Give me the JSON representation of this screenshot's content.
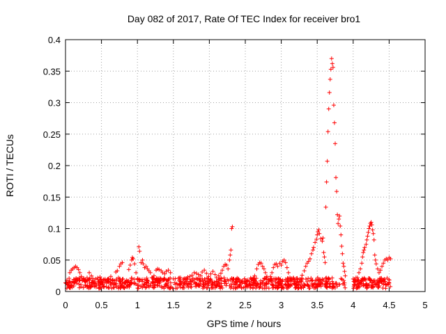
{
  "chart_data": {
    "type": "scatter",
    "title": "Day 082 of 2017, Rate Of TEC Index for receiver bro1",
    "xlabel": "GPS time / hours",
    "ylabel": "ROTI / TECUs",
    "xlim": [
      0,
      5
    ],
    "ylim": [
      0,
      0.4
    ],
    "xticks": [
      0,
      0.5,
      1,
      1.5,
      2,
      2.5,
      3,
      3.5,
      4,
      4.5,
      5
    ],
    "xtick_labels": [
      "0",
      "0.5",
      "1",
      "1.5",
      "2",
      "2.5",
      "3",
      "3.5",
      "4",
      "4.5",
      "5"
    ],
    "yticks": [
      0,
      0.05,
      0.1,
      0.15,
      0.2,
      0.25,
      0.3,
      0.35,
      0.4
    ],
    "ytick_labels": [
      "0",
      "0.05",
      "0.1",
      "0.15",
      "0.2",
      "0.25",
      "0.3",
      "0.35",
      "0.4"
    ],
    "grid": true,
    "marker": "+",
    "marker_color": "#ff0000",
    "series": [
      {
        "name": "ROTI",
        "points": [
          [
            0.0,
            0.014
          ],
          [
            0.02,
            0.018
          ],
          [
            0.03,
            0.011
          ],
          [
            0.05,
            0.021
          ],
          [
            0.06,
            0.03
          ],
          [
            0.08,
            0.034
          ],
          [
            0.1,
            0.036
          ],
          [
            0.12,
            0.038
          ],
          [
            0.14,
            0.04
          ],
          [
            0.16,
            0.038
          ],
          [
            0.18,
            0.035
          ],
          [
            0.2,
            0.03
          ],
          [
            0.22,
            0.024
          ],
          [
            0.25,
            0.019
          ],
          [
            0.28,
            0.015
          ],
          [
            0.3,
            0.022
          ],
          [
            0.33,
            0.03
          ],
          [
            0.36,
            0.025
          ],
          [
            0.38,
            0.018
          ],
          [
            0.4,
            0.014
          ],
          [
            0.42,
            0.012
          ],
          [
            0.45,
            0.019
          ],
          [
            0.48,
            0.023
          ],
          [
            0.5,
            0.016
          ],
          [
            0.52,
            0.012
          ],
          [
            0.55,
            0.02
          ],
          [
            0.58,
            0.018
          ],
          [
            0.6,
            0.015
          ],
          [
            0.63,
            0.024
          ],
          [
            0.66,
            0.013
          ],
          [
            0.68,
            0.017
          ],
          [
            0.7,
            0.031
          ],
          [
            0.72,
            0.033
          ],
          [
            0.75,
            0.04
          ],
          [
            0.77,
            0.044
          ],
          [
            0.79,
            0.046
          ],
          [
            0.8,
            0.02
          ],
          [
            0.82,
            0.014
          ],
          [
            0.85,
            0.018
          ],
          [
            0.88,
            0.035
          ],
          [
            0.9,
            0.042
          ],
          [
            0.92,
            0.05
          ],
          [
            0.93,
            0.054
          ],
          [
            0.94,
            0.052
          ],
          [
            0.96,
            0.044
          ],
          [
            0.98,
            0.03
          ],
          [
            1.0,
            0.02
          ],
          [
            1.02,
            0.071
          ],
          [
            1.03,
            0.064
          ],
          [
            1.05,
            0.046
          ],
          [
            1.07,
            0.05
          ],
          [
            1.08,
            0.044
          ],
          [
            1.1,
            0.038
          ],
          [
            1.12,
            0.04
          ],
          [
            1.14,
            0.036
          ],
          [
            1.16,
            0.033
          ],
          [
            1.18,
            0.03
          ],
          [
            1.2,
            0.022
          ],
          [
            1.23,
            0.025
          ],
          [
            1.26,
            0.034
          ],
          [
            1.28,
            0.036
          ],
          [
            1.3,
            0.035
          ],
          [
            1.33,
            0.033
          ],
          [
            1.35,
            0.03
          ],
          [
            1.38,
            0.028
          ],
          [
            1.4,
            0.032
          ],
          [
            1.43,
            0.034
          ],
          [
            1.46,
            0.03
          ],
          [
            1.5,
            0.02
          ],
          [
            1.52,
            0.014
          ],
          [
            1.55,
            0.012
          ],
          [
            1.58,
            0.018
          ],
          [
            1.6,
            0.022
          ],
          [
            1.63,
            0.015
          ],
          [
            1.66,
            0.013
          ],
          [
            1.7,
            0.023
          ],
          [
            1.73,
            0.024
          ],
          [
            1.76,
            0.026
          ],
          [
            1.79,
            0.03
          ],
          [
            1.82,
            0.029
          ],
          [
            1.85,
            0.027
          ],
          [
            1.88,
            0.025
          ],
          [
            1.9,
            0.031
          ],
          [
            1.93,
            0.034
          ],
          [
            1.96,
            0.029
          ],
          [
            1.99,
            0.024
          ],
          [
            2.02,
            0.028
          ],
          [
            2.05,
            0.032
          ],
          [
            2.08,
            0.027
          ],
          [
            2.1,
            0.022
          ],
          [
            2.13,
            0.025
          ],
          [
            2.16,
            0.029
          ],
          [
            2.18,
            0.034
          ],
          [
            2.2,
            0.04
          ],
          [
            2.22,
            0.043
          ],
          [
            2.24,
            0.042
          ],
          [
            2.26,
            0.036
          ],
          [
            2.28,
            0.05
          ],
          [
            2.29,
            0.058
          ],
          [
            2.3,
            0.066
          ],
          [
            2.31,
            0.1
          ],
          [
            2.32,
            0.103
          ],
          [
            2.34,
            0.02
          ],
          [
            2.38,
            0.018
          ],
          [
            2.42,
            0.015
          ],
          [
            2.46,
            0.017
          ],
          [
            2.5,
            0.013
          ],
          [
            2.55,
            0.016
          ],
          [
            2.6,
            0.02
          ],
          [
            2.63,
            0.025
          ],
          [
            2.66,
            0.036
          ],
          [
            2.68,
            0.043
          ],
          [
            2.7,
            0.046
          ],
          [
            2.72,
            0.045
          ],
          [
            2.74,
            0.04
          ],
          [
            2.76,
            0.036
          ],
          [
            2.78,
            0.03
          ],
          [
            2.8,
            0.024
          ],
          [
            2.83,
            0.018
          ],
          [
            2.85,
            0.024
          ],
          [
            2.87,
            0.03
          ],
          [
            2.89,
            0.038
          ],
          [
            2.91,
            0.043
          ],
          [
            2.93,
            0.044
          ],
          [
            2.95,
            0.04
          ],
          [
            2.98,
            0.045
          ],
          [
            3.0,
            0.042
          ],
          [
            3.02,
            0.048
          ],
          [
            3.04,
            0.05
          ],
          [
            3.06,
            0.046
          ],
          [
            3.08,
            0.038
          ],
          [
            3.1,
            0.03
          ],
          [
            3.12,
            0.022
          ],
          [
            3.15,
            0.018
          ],
          [
            3.18,
            0.013
          ],
          [
            3.2,
            0.012
          ],
          [
            3.23,
            0.016
          ],
          [
            3.26,
            0.02
          ],
          [
            3.29,
            0.026
          ],
          [
            3.32,
            0.033
          ],
          [
            3.34,
            0.04
          ],
          [
            3.36,
            0.045
          ],
          [
            3.38,
            0.048
          ],
          [
            3.4,
            0.052
          ],
          [
            3.42,
            0.06
          ],
          [
            3.44,
            0.066
          ],
          [
            3.45,
            0.07
          ],
          [
            3.47,
            0.078
          ],
          [
            3.49,
            0.083
          ],
          [
            3.5,
            0.09
          ],
          [
            3.51,
            0.095
          ],
          [
            3.52,
            0.098
          ],
          [
            3.53,
            0.092
          ],
          [
            3.55,
            0.084
          ],
          [
            3.57,
            0.08
          ],
          [
            3.58,
            0.085
          ],
          [
            3.59,
            0.062
          ],
          [
            3.6,
            0.055
          ],
          [
            3.61,
            0.046
          ],
          [
            3.62,
            0.134
          ],
          [
            3.63,
            0.174
          ],
          [
            3.64,
            0.207
          ],
          [
            3.65,
            0.254
          ],
          [
            3.66,
            0.29
          ],
          [
            3.67,
            0.316
          ],
          [
            3.68,
            0.337
          ],
          [
            3.69,
            0.353
          ],
          [
            3.7,
            0.37
          ],
          [
            3.71,
            0.362
          ],
          [
            3.72,
            0.356
          ],
          [
            3.73,
            0.296
          ],
          [
            3.74,
            0.268
          ],
          [
            3.75,
            0.235
          ],
          [
            3.76,
            0.181
          ],
          [
            3.77,
            0.159
          ],
          [
            3.78,
            0.122
          ],
          [
            3.79,
            0.108
          ],
          [
            3.8,
            0.115
          ],
          [
            3.81,
            0.12
          ],
          [
            3.82,
            0.104
          ],
          [
            3.83,
            0.09
          ],
          [
            3.84,
            0.072
          ],
          [
            3.85,
            0.06
          ],
          [
            3.86,
            0.045
          ],
          [
            3.87,
            0.04
          ],
          [
            3.88,
            0.032
          ],
          [
            3.89,
            0.025
          ],
          [
            4.0,
            0.02
          ],
          [
            4.02,
            0.015
          ],
          [
            4.04,
            0.018
          ],
          [
            4.06,
            0.022
          ],
          [
            4.08,
            0.03
          ],
          [
            4.1,
            0.036
          ],
          [
            4.12,
            0.045
          ],
          [
            4.13,
            0.055
          ],
          [
            4.14,
            0.062
          ],
          [
            4.15,
            0.066
          ],
          [
            4.16,
            0.07
          ],
          [
            4.18,
            0.075
          ],
          [
            4.19,
            0.082
          ],
          [
            4.2,
            0.088
          ],
          [
            4.21,
            0.094
          ],
          [
            4.22,
            0.1
          ],
          [
            4.23,
            0.104
          ],
          [
            4.24,
            0.108
          ],
          [
            4.25,
            0.11
          ],
          [
            4.26,
            0.106
          ],
          [
            4.27,
            0.098
          ],
          [
            4.28,
            0.092
          ],
          [
            4.29,
            0.082
          ],
          [
            4.3,
            0.058
          ],
          [
            4.31,
            0.05
          ],
          [
            4.32,
            0.044
          ],
          [
            4.34,
            0.036
          ],
          [
            4.36,
            0.03
          ],
          [
            4.38,
            0.034
          ],
          [
            4.4,
            0.04
          ],
          [
            4.42,
            0.045
          ],
          [
            4.44,
            0.05
          ],
          [
            4.46,
            0.052
          ],
          [
            4.48,
            0.05
          ],
          [
            4.5,
            0.054
          ],
          [
            4.52,
            0.052
          ]
        ]
      }
    ],
    "noise_band": {
      "description": "dense band of low ROTI values",
      "ranges": [
        [
          0,
          0.98
        ],
        [
          1.0,
          3.89
        ],
        [
          4.0,
          4.52
        ]
      ],
      "y_range": [
        0.005,
        0.022
      ],
      "count": 900
    }
  }
}
